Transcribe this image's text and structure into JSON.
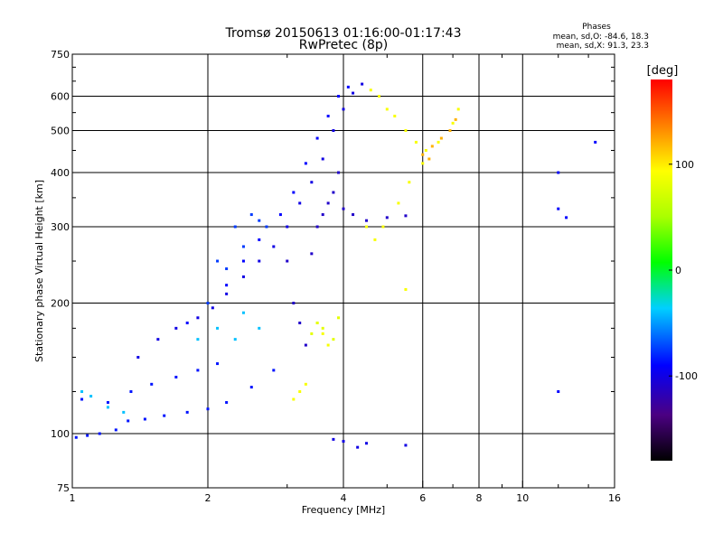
{
  "chart_data": {
    "type": "scatter",
    "title": "Tromsø 20150613 01:16:00-01:17:43",
    "subtitle": "RwPretec (8p)",
    "xlabel": "Frequency [MHz]",
    "ylabel": "Stationary phase Virtual Height [km]",
    "x_scale": "log",
    "y_scale": "log",
    "xlim": [
      1,
      16
    ],
    "ylim": [
      75,
      750
    ],
    "x_ticks": [
      1,
      2,
      4,
      6,
      8,
      10,
      16
    ],
    "x_tick_labels": [
      "1",
      "2",
      "4",
      "6",
      "8",
      "10",
      "16"
    ],
    "y_ticks": [
      75,
      100,
      200,
      300,
      400,
      500,
      600,
      750
    ],
    "y_tick_labels": [
      "75",
      "100",
      "200",
      "300",
      "400",
      "500",
      "600",
      "750"
    ],
    "grid": true,
    "stats": {
      "heading": "Phases",
      "line_o": "mean, sd,O: -84.6, 18.3",
      "line_x": "mean, sd,X:  91.3, 23.3"
    },
    "colorbar": {
      "label": "[deg]",
      "range": [
        -180,
        180
      ],
      "ticks": [
        100,
        0,
        -100
      ],
      "tick_labels": [
        "100",
        "0",
        "-100"
      ]
    },
    "series": [
      {
        "points": [
          [
            1.02,
            98
          ],
          [
            1.08,
            99
          ],
          [
            1.15,
            100
          ],
          [
            1.25,
            102
          ],
          [
            1.33,
            107
          ],
          [
            1.45,
            108
          ],
          [
            1.6,
            110
          ],
          [
            1.8,
            112
          ],
          [
            2.0,
            114
          ],
          [
            2.2,
            118
          ],
          [
            2.5,
            128
          ],
          [
            2.8,
            140
          ],
          [
            1.05,
            120
          ],
          [
            1.2,
            118
          ],
          [
            1.35,
            125
          ],
          [
            1.5,
            130
          ],
          [
            1.7,
            135
          ],
          [
            1.9,
            140
          ],
          [
            2.1,
            145
          ]
        ],
        "phase": -85
      },
      {
        "points": [
          [
            1.4,
            150
          ],
          [
            1.55,
            165
          ],
          [
            1.7,
            175
          ],
          [
            1.9,
            185
          ],
          [
            2.05,
            195
          ],
          [
            2.2,
            210
          ],
          [
            2.4,
            230
          ],
          [
            2.6,
            250
          ],
          [
            2.8,
            270
          ],
          [
            3.0,
            300
          ],
          [
            3.2,
            340
          ],
          [
            3.4,
            380
          ],
          [
            3.6,
            430
          ],
          [
            3.8,
            500
          ],
          [
            4.0,
            560
          ],
          [
            4.2,
            610
          ],
          [
            4.4,
            640
          ]
        ],
        "phase": -100
      },
      {
        "points": [
          [
            1.8,
            180
          ],
          [
            2.0,
            200
          ],
          [
            2.2,
            220
          ],
          [
            2.4,
            250
          ],
          [
            2.6,
            280
          ],
          [
            2.9,
            320
          ],
          [
            3.1,
            360
          ],
          [
            3.3,
            420
          ],
          [
            3.5,
            480
          ],
          [
            3.7,
            540
          ],
          [
            3.9,
            600
          ],
          [
            4.1,
            630
          ]
        ],
        "phase": -90
      },
      {
        "points": [
          [
            3.0,
            250
          ],
          [
            3.1,
            200
          ],
          [
            3.2,
            180
          ],
          [
            3.3,
            160
          ],
          [
            3.4,
            260
          ],
          [
            3.5,
            300
          ],
          [
            3.6,
            320
          ],
          [
            3.7,
            340
          ],
          [
            3.8,
            360
          ],
          [
            3.9,
            400
          ],
          [
            4.0,
            330
          ],
          [
            4.2,
            320
          ],
          [
            4.5,
            310
          ],
          [
            5.0,
            315
          ],
          [
            5.5,
            318
          ]
        ],
        "phase": -110
      },
      {
        "points": [
          [
            2.0,
            200
          ],
          [
            2.2,
            240
          ],
          [
            2.4,
            270
          ],
          [
            2.7,
            300
          ],
          [
            2.5,
            320
          ],
          [
            2.3,
            300
          ],
          [
            2.6,
            310
          ],
          [
            2.1,
            250
          ]
        ],
        "phase": -75
      },
      {
        "points": [
          [
            4.6,
            620
          ],
          [
            4.8,
            600
          ],
          [
            5.0,
            560
          ],
          [
            5.2,
            540
          ],
          [
            5.5,
            500
          ],
          [
            5.8,
            470
          ],
          [
            6.1,
            450
          ],
          [
            6.5,
            470
          ],
          [
            7.0,
            520
          ],
          [
            7.2,
            560
          ],
          [
            4.5,
            300
          ],
          [
            4.7,
            280
          ],
          [
            4.9,
            300
          ],
          [
            5.3,
            340
          ],
          [
            5.6,
            380
          ],
          [
            6.0,
            420
          ],
          [
            3.5,
            180
          ],
          [
            3.6,
            170
          ],
          [
            3.7,
            160
          ],
          [
            3.1,
            120
          ],
          [
            3.2,
            125
          ],
          [
            3.3,
            130
          ],
          [
            5.5,
            215
          ]
        ],
        "phase": 90
      },
      {
        "points": [
          [
            3.5,
            180
          ],
          [
            3.6,
            175
          ],
          [
            3.8,
            165
          ],
          [
            3.9,
            185
          ],
          [
            3.4,
            170
          ]
        ],
        "phase": 80
      },
      {
        "points": [
          [
            6.0,
            440
          ],
          [
            6.3,
            460
          ],
          [
            6.6,
            480
          ],
          [
            6.9,
            500
          ],
          [
            7.1,
            530
          ],
          [
            6.2,
            430
          ]
        ],
        "phase": 120
      },
      {
        "points": [
          [
            1.05,
            125
          ],
          [
            1.1,
            122
          ],
          [
            1.2,
            115
          ],
          [
            1.3,
            112
          ],
          [
            2.6,
            175
          ],
          [
            2.4,
            190
          ],
          [
            2.3,
            165
          ],
          [
            2.1,
            175
          ],
          [
            1.9,
            165
          ]
        ],
        "phase": -40
      },
      {
        "points": [
          [
            4.0,
            96
          ],
          [
            4.3,
            93
          ],
          [
            4.5,
            95
          ],
          [
            3.8,
            97
          ],
          [
            5.5,
            94
          ]
        ],
        "phase": -100
      },
      {
        "points": [
          [
            12,
            400
          ],
          [
            12,
            330
          ],
          [
            12.5,
            315
          ],
          [
            12,
            125
          ],
          [
            14.5,
            470
          ]
        ],
        "phase": -90
      }
    ]
  }
}
